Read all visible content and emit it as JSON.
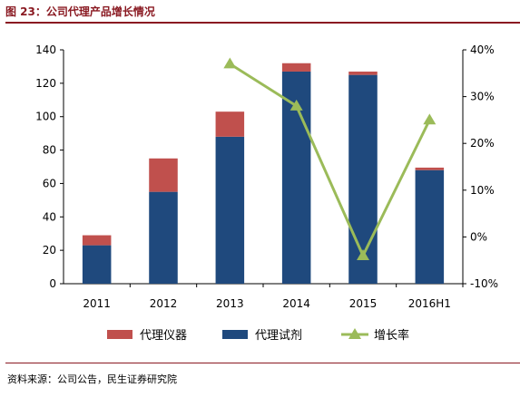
{
  "header": {
    "title": "图 23：公司代理产品增长情况"
  },
  "footer": {
    "source": "资料来源：公司公告，民生证券研究院"
  },
  "colors": {
    "accent": "#8a1a22",
    "instruments": "#c0504d",
    "reagents": "#1f497d",
    "growth": "#9bbb59"
  },
  "chart_data": {
    "type": "bar",
    "stacked": true,
    "categories": [
      "2011",
      "2012",
      "2013",
      "2014",
      "2015",
      "2016H1"
    ],
    "series": [
      {
        "name": "代理试剂",
        "type": "bar",
        "axis": "left",
        "values": [
          23,
          55,
          88,
          127,
          125,
          68
        ]
      },
      {
        "name": "代理仪器",
        "type": "bar",
        "axis": "left",
        "values": [
          6,
          20,
          15,
          5,
          2,
          1.5
        ]
      },
      {
        "name": "增长率",
        "type": "line",
        "axis": "right",
        "marker": "triangle",
        "values": [
          null,
          null,
          37,
          28,
          -4,
          25
        ]
      }
    ],
    "y_left": {
      "min": 0,
      "max": 140,
      "ticks": [
        0,
        20,
        40,
        60,
        80,
        100,
        120,
        140
      ]
    },
    "y_right": {
      "min": -10,
      "max": 40,
      "ticks": [
        "-10%",
        "0%",
        "10%",
        "20%",
        "30%",
        "40%"
      ]
    },
    "legend": {
      "position": "bottom",
      "items": [
        "代理仪器",
        "代理试剂",
        "增长率"
      ]
    },
    "grid": false
  }
}
